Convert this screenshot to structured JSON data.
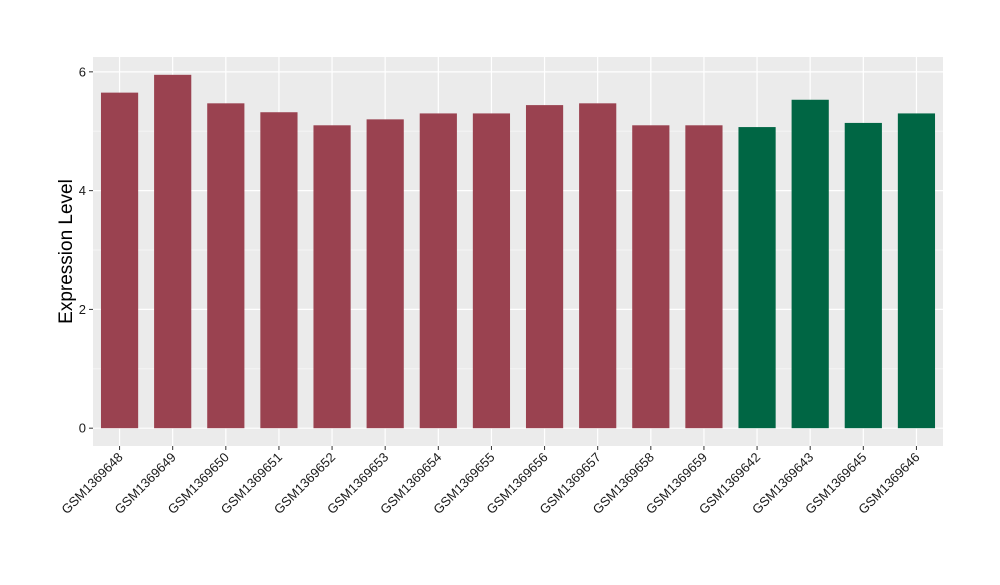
{
  "chart_data": {
    "type": "bar",
    "title": "",
    "xlabel": "",
    "ylabel": "Expression Level",
    "ylim": [
      -0.3,
      6.25
    ],
    "yticks": [
      0,
      2,
      4,
      6
    ],
    "grid": true,
    "legend": "none",
    "colors": {
      "panel": "#ebebeb",
      "grid_major": "#ffffff",
      "grid_minor": "#f5f5f5",
      "tick": "#333333",
      "group_a": "#9a4250",
      "group_b": "#006644"
    },
    "bars": [
      {
        "category": "GSM1369648",
        "value": 5.65,
        "group": "a"
      },
      {
        "category": "GSM1369649",
        "value": 5.95,
        "group": "a"
      },
      {
        "category": "GSM1369650",
        "value": 5.47,
        "group": "a"
      },
      {
        "category": "GSM1369651",
        "value": 5.32,
        "group": "a"
      },
      {
        "category": "GSM1369652",
        "value": 5.1,
        "group": "a"
      },
      {
        "category": "GSM1369653",
        "value": 5.2,
        "group": "a"
      },
      {
        "category": "GSM1369654",
        "value": 5.3,
        "group": "a"
      },
      {
        "category": "GSM1369655",
        "value": 5.3,
        "group": "a"
      },
      {
        "category": "GSM1369656",
        "value": 5.44,
        "group": "a"
      },
      {
        "category": "GSM1369657",
        "value": 5.47,
        "group": "a"
      },
      {
        "category": "GSM1369658",
        "value": 5.1,
        "group": "a"
      },
      {
        "category": "GSM1369659",
        "value": 5.1,
        "group": "a"
      },
      {
        "category": "GSM1369642",
        "value": 5.07,
        "group": "b"
      },
      {
        "category": "GSM1369643",
        "value": 5.53,
        "group": "b"
      },
      {
        "category": "GSM1369645",
        "value": 5.14,
        "group": "b"
      },
      {
        "category": "GSM1369646",
        "value": 5.3,
        "group": "b"
      }
    ]
  }
}
